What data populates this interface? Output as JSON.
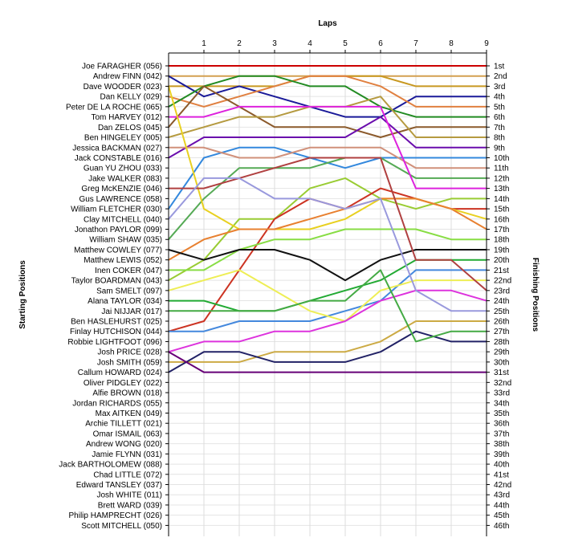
{
  "chart_data": {
    "type": "line",
    "title": "",
    "xlabel": "Laps",
    "ylabel_left": "Starting Positions",
    "ylabel_right": "Finishing Positions",
    "laps": [
      1,
      2,
      3,
      4,
      5,
      6,
      7,
      8,
      9
    ],
    "xlim": [
      0,
      9
    ],
    "grid": true,
    "starting_labels": [
      "Joe FARAGHER (056)",
      "Andrew FINN (042)",
      "Dave WOODER (023)",
      "Dan KELLY (029)",
      "Peter DE LA ROCHE (065)",
      "Tom HARVEY (012)",
      "Dan ZELOS (045)",
      "Ben HINGELEY (005)",
      "Jessica BACKMAN (027)",
      "Jack CONSTABLE (016)",
      "Guan YU ZHOU (033)",
      "Jake WALKER (083)",
      "Greg McKENZIE (046)",
      "Gus LAWRENCE (058)",
      "William FLETCHER (030)",
      "Clay MITCHELL (040)",
      "Jonathon PAYLOR (099)",
      "William SHAW (035)",
      "Matthew COWLEY (077)",
      "Matthew LEWIS (052)",
      "Inen COKER (047)",
      "Taylor BOARDMAN (043)",
      "Sam SMELT (097)",
      "Alana TAYLOR (034)",
      "Jai NIJJAR (017)",
      "Ben HASLEHURST (025)",
      "Finlay HUTCHISON (044)",
      "Robbie LIGHTFOOT (096)",
      "Josh PRICE (028)",
      "Josh SMITH (059)",
      "Callum HOWARD (024)",
      "Oliver PIDGLEY (022)",
      "Alfie BROWN (018)",
      "Jordan RICHARDS (055)",
      "Max AITKEN (049)",
      "Archie TILLETT (021)",
      "Omar ISMAIL (063)",
      "Andrew WONG (020)",
      "Jamie FLYNN (031)",
      "Jack BARTHOLOMEW (088)",
      "Chad LITTLE (072)",
      "Edward TANSLEY (037)",
      "Josh WHITE (011)",
      "Brett WARD (039)",
      "Philip HAMPRECHT (026)",
      "Scott MITCHELL (050)"
    ],
    "finishing_labels": [
      "1st",
      "2nd",
      "3rd",
      "4th",
      "5th",
      "6th",
      "7th",
      "8th",
      "9th",
      "10th",
      "11th",
      "12th",
      "13th",
      "14th",
      "15th",
      "16th",
      "17th",
      "18th",
      "19th",
      "20th",
      "21st",
      "22nd",
      "23rd",
      "24th",
      "25th",
      "26th",
      "27th",
      "28th",
      "29th",
      "30th",
      "31st",
      "32nd",
      "33rd",
      "34th",
      "35th",
      "36th",
      "37th",
      "38th",
      "39th",
      "40th",
      "41st",
      "42nd",
      "43rd",
      "44th",
      "45th",
      "46th"
    ],
    "series": [
      {
        "start": 1,
        "positions": [
          1,
          1,
          1,
          1,
          1,
          1,
          1,
          1,
          1
        ],
        "color": "#cc0000"
      },
      {
        "start": 2,
        "positions": [
          2,
          2,
          2,
          2,
          2,
          2,
          2,
          2,
          2
        ],
        "color": "#d4a050"
      },
      {
        "start": 3,
        "positions": [
          3,
          3,
          3,
          2,
          2,
          2,
          3,
          3,
          3
        ],
        "color": "#c89820"
      },
      {
        "start": 2,
        "positions": [
          4,
          3,
          4,
          5,
          6,
          6,
          4,
          4,
          4
        ],
        "color": "#1a1a99"
      },
      {
        "start": 4,
        "positions": [
          5,
          4,
          3,
          2,
          2,
          3,
          5,
          5,
          5
        ],
        "color": "#e08040"
      },
      {
        "start": 5,
        "positions": [
          3,
          2,
          2,
          3,
          3,
          5,
          6,
          6,
          6
        ],
        "color": "#228b22"
      },
      {
        "start": 7,
        "positions": [
          3,
          5,
          7,
          7,
          7,
          8,
          7,
          7,
          7
        ],
        "color": "#8b5a2b"
      },
      {
        "start": 8,
        "positions": [
          7,
          6,
          6,
          5,
          5,
          4,
          8,
          8,
          8
        ],
        "color": "#b59a40"
      },
      {
        "start": 10,
        "positions": [
          8,
          8,
          8,
          8,
          8,
          6,
          9,
          9,
          9
        ],
        "color": "#6a0dad"
      },
      {
        "start": 15,
        "positions": [
          10,
          9,
          9,
          10,
          11,
          10,
          10,
          10,
          10
        ],
        "color": "#3388dd"
      },
      {
        "start": 9,
        "positions": [
          9,
          10,
          10,
          9,
          9,
          9,
          11,
          11,
          11
        ],
        "color": "#d0907a"
      },
      {
        "start": 18,
        "positions": [
          14,
          11,
          11,
          11,
          10,
          10,
          12,
          12,
          12
        ],
        "color": "#55aa55"
      },
      {
        "start": 6,
        "positions": [
          6,
          5,
          5,
          5,
          5,
          5,
          13,
          13,
          13
        ],
        "color": "#dd22dd"
      },
      {
        "start": 22,
        "positions": [
          20,
          16,
          16,
          13,
          12,
          14,
          15,
          14,
          14
        ],
        "color": "#99cc33"
      },
      {
        "start": 27,
        "positions": [
          26,
          21,
          16,
          14,
          15,
          13,
          14,
          15,
          15
        ],
        "color": "#cc3322"
      },
      {
        "start": 3,
        "positions": [
          15,
          17,
          17,
          17,
          16,
          14,
          14,
          15,
          16
        ],
        "color": "#e8d020"
      },
      {
        "start": 20,
        "positions": [
          18,
          17,
          17,
          16,
          15,
          14,
          14,
          15,
          17
        ],
        "color": "#e88030"
      },
      {
        "start": 21,
        "positions": [
          21,
          19,
          18,
          18,
          17,
          17,
          17,
          18,
          18
        ],
        "color": "#88dd44"
      },
      {
        "start": 19,
        "positions": [
          20,
          19,
          19,
          20,
          22,
          20,
          19,
          19,
          19
        ],
        "color": "#111111"
      },
      {
        "start": 24,
        "positions": [
          24,
          25,
          25,
          24,
          23,
          22,
          20,
          20,
          20
        ],
        "color": "#22aa33"
      },
      {
        "start": 27,
        "positions": [
          27,
          26,
          26,
          26,
          25,
          24,
          21,
          21,
          21
        ],
        "color": "#4488dd"
      },
      {
        "start": 23,
        "positions": [
          22,
          21,
          23,
          25,
          26,
          23,
          22,
          22,
          22
        ],
        "color": "#eeee55"
      },
      {
        "start": 13,
        "positions": [
          13,
          12,
          11,
          10,
          10,
          10,
          20,
          20,
          23
        ],
        "color": "#b04040"
      },
      {
        "start": 29,
        "positions": [
          28,
          28,
          27,
          27,
          26,
          24,
          23,
          23,
          24
        ],
        "color": "#dd33dd"
      },
      {
        "start": 16,
        "positions": [
          12,
          12,
          14,
          14,
          15,
          14,
          23,
          25,
          25
        ],
        "color": "#9999dd"
      },
      {
        "start": 30,
        "positions": [
          30,
          30,
          29,
          29,
          29,
          28,
          26,
          26,
          26
        ],
        "color": "#ccaa44"
      },
      {
        "start": 31,
        "positions": [
          29,
          29,
          30,
          30,
          30,
          29,
          27,
          28,
          28
        ],
        "color": "#222266"
      },
      {
        "start": 25,
        "positions": [
          25,
          25,
          25,
          24,
          24,
          21,
          28,
          27,
          27
        ],
        "color": "#44aa44"
      },
      {
        "start": 29,
        "positions": [
          31,
          31,
          31,
          31,
          31,
          31,
          31,
          31,
          31
        ],
        "color": "#660077"
      }
    ]
  }
}
